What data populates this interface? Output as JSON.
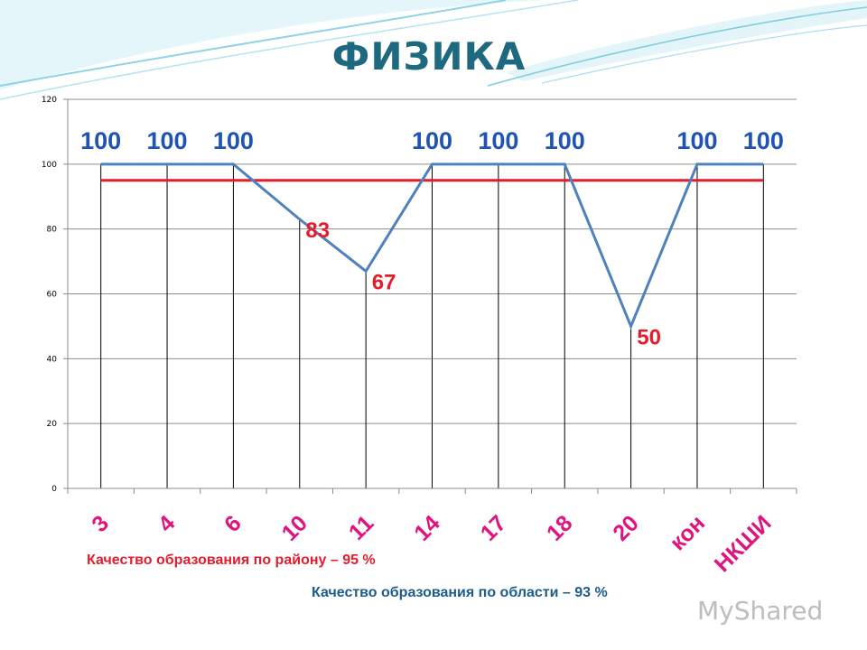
{
  "title": "ФИЗИКА",
  "notes": {
    "district": "Качество образования по району – 95 %",
    "region": "Качество образования по области – 93 %"
  },
  "watermark": "MyShared",
  "colors": {
    "title": "#1d6a80",
    "series_line": "#4f81bd",
    "reference_line": "#e51c2c",
    "category_labels": "#e0147f",
    "value_labels_100": "#1f53b5",
    "value_labels_low": "#e51c2c"
  },
  "chart_data": {
    "type": "line",
    "title": "ФИЗИКА",
    "categories": [
      "3",
      "4",
      "6",
      "10",
      "11",
      "14",
      "17",
      "18",
      "20",
      "кон",
      "НКШИ"
    ],
    "series": [
      {
        "values": [
          100,
          100,
          100,
          83,
          67,
          100,
          100,
          100,
          50,
          100,
          100
        ]
      }
    ],
    "data_labels": [
      "100",
      "100",
      "100",
      "83",
      "67",
      "100",
      "100",
      "100",
      "50",
      "100",
      "100"
    ],
    "reference_line": 95,
    "ylim": [
      0,
      120
    ],
    "y_ticks": [
      "0",
      "20",
      "40",
      "60",
      "80",
      "100",
      "120"
    ],
    "drop_lines": true,
    "xlabel": "",
    "ylabel": ""
  }
}
